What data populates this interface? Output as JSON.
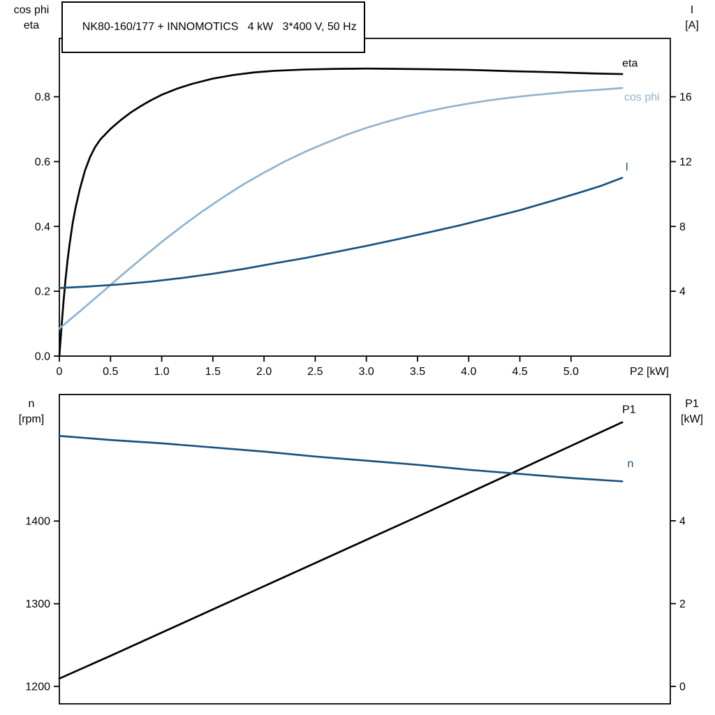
{
  "header": {
    "title": "NK80-160/177 + INNOMOTICS   4 kW   3*400 V, 50 Hz"
  },
  "colors": {
    "curve_black": "#000000",
    "curve_light_blue": "#8fb3d0",
    "curve_dark_blue": "#17527e",
    "axis": "#000000",
    "background": "#ffffff"
  },
  "chart_data": [
    {
      "type": "line",
      "name": "electrical-panel",
      "y_left_corner_label": [
        "cos phi",
        "eta"
      ],
      "y_right_corner_label": [
        "I",
        "[A]"
      ],
      "x_axis": {
        "label": "P2 [kW]",
        "min": 0,
        "max": 5.97,
        "ticks": [
          0,
          0.5,
          1,
          1.5,
          2,
          2.5,
          3,
          3.5,
          4,
          4.5,
          5
        ],
        "tick_labels": [
          "0",
          "0.5",
          "1.0",
          "1.5",
          "2.0",
          "2.5",
          "3.0",
          "3.5",
          "4.0",
          "4.5",
          "5.0"
        ]
      },
      "y_left_axis": {
        "min": 0,
        "max": 0.98,
        "ticks": [
          0,
          0.2,
          0.4,
          0.6,
          0.8
        ],
        "tick_labels": [
          "0.0",
          "0.2",
          "0.4",
          "0.6",
          "0.8"
        ]
      },
      "y_right_axis": {
        "min": 0,
        "max": 19.6,
        "ticks": [
          4,
          8,
          12,
          16
        ],
        "tick_labels": [
          "4",
          "8",
          "12",
          "16"
        ]
      },
      "series": [
        {
          "name": "eta",
          "label": "eta",
          "axis": "left",
          "color": "curve_black",
          "label_at": {
            "x": 5.5,
            "y": 0.905
          },
          "points": [
            [
              0,
              0
            ],
            [
              0.02,
              0.085
            ],
            [
              0.04,
              0.165
            ],
            [
              0.06,
              0.235
            ],
            [
              0.08,
              0.295
            ],
            [
              0.1,
              0.345
            ],
            [
              0.13,
              0.41
            ],
            [
              0.16,
              0.46
            ],
            [
              0.2,
              0.515
            ],
            [
              0.25,
              0.572
            ],
            [
              0.3,
              0.614
            ],
            [
              0.35,
              0.645
            ],
            [
              0.4,
              0.668
            ],
            [
              0.5,
              0.701
            ],
            [
              0.6,
              0.728
            ],
            [
              0.7,
              0.752
            ],
            [
              0.8,
              0.772
            ],
            [
              0.9,
              0.79
            ],
            [
              1,
              0.806
            ],
            [
              1.15,
              0.825
            ],
            [
              1.3,
              0.84
            ],
            [
              1.5,
              0.856
            ],
            [
              1.7,
              0.867
            ],
            [
              1.9,
              0.875
            ],
            [
              2.1,
              0.88
            ],
            [
              2.4,
              0.884
            ],
            [
              2.7,
              0.886
            ],
            [
              3,
              0.887
            ],
            [
              3.3,
              0.886
            ],
            [
              3.6,
              0.885
            ],
            [
              4,
              0.883
            ],
            [
              4.4,
              0.879
            ],
            [
              4.8,
              0.876
            ],
            [
              5.2,
              0.872
            ],
            [
              5.5,
              0.87
            ]
          ]
        },
        {
          "name": "cos-phi",
          "label": "cos phi",
          "axis": "left",
          "color": "curve_light_blue",
          "label_at": {
            "x": 5.52,
            "y": 0.8
          },
          "points": [
            [
              0,
              0.085
            ],
            [
              0.2,
              0.138
            ],
            [
              0.4,
              0.192
            ],
            [
              0.6,
              0.247
            ],
            [
              0.8,
              0.3
            ],
            [
              1,
              0.352
            ],
            [
              1.2,
              0.401
            ],
            [
              1.4,
              0.447
            ],
            [
              1.6,
              0.49
            ],
            [
              1.8,
              0.53
            ],
            [
              2,
              0.566
            ],
            [
              2.2,
              0.6
            ],
            [
              2.4,
              0.63
            ],
            [
              2.6,
              0.657
            ],
            [
              2.8,
              0.682
            ],
            [
              3,
              0.704
            ],
            [
              3.2,
              0.723
            ],
            [
              3.4,
              0.74
            ],
            [
              3.6,
              0.755
            ],
            [
              3.8,
              0.768
            ],
            [
              4,
              0.779
            ],
            [
              4.2,
              0.789
            ],
            [
              4.4,
              0.797
            ],
            [
              4.6,
              0.804
            ],
            [
              4.8,
              0.81
            ],
            [
              5,
              0.816
            ],
            [
              5.25,
              0.821
            ],
            [
              5.5,
              0.827
            ]
          ]
        },
        {
          "name": "current",
          "label": "I",
          "axis": "right",
          "color": "curve_dark_blue",
          "label_at": {
            "x": 5.53,
            "y": 11.7
          },
          "points": [
            [
              0,
              4.2
            ],
            [
              0.3,
              4.3
            ],
            [
              0.6,
              4.43
            ],
            [
              0.9,
              4.6
            ],
            [
              1.2,
              4.82
            ],
            [
              1.5,
              5.08
            ],
            [
              1.8,
              5.38
            ],
            [
              2.1,
              5.72
            ],
            [
              2.4,
              6.05
            ],
            [
              2.7,
              6.42
            ],
            [
              3,
              6.8
            ],
            [
              3.3,
              7.2
            ],
            [
              3.6,
              7.62
            ],
            [
              3.9,
              8.05
            ],
            [
              4.2,
              8.52
            ],
            [
              4.5,
              9
            ],
            [
              4.8,
              9.55
            ],
            [
              5.1,
              10.12
            ],
            [
              5.3,
              10.52
            ],
            [
              5.5,
              11
            ]
          ]
        }
      ]
    },
    {
      "type": "line",
      "name": "mechanical-panel",
      "y_left_corner_label": [
        "n",
        "[rpm]"
      ],
      "y_right_corner_label": [
        "P1",
        "[kW]"
      ],
      "x_axis": {
        "label": "",
        "min": 0,
        "max": 5.97,
        "ticks": [],
        "tick_labels": []
      },
      "y_left_axis": {
        "min": 1179,
        "max": 1553,
        "ticks": [
          1200,
          1300,
          1400
        ],
        "tick_labels": [
          "1200",
          "1300",
          "1400"
        ]
      },
      "y_right_axis": {
        "min": -0.42,
        "max": 7.05,
        "ticks": [
          0,
          2,
          4
        ],
        "tick_labels": [
          "0",
          "2",
          "4"
        ]
      },
      "series": [
        {
          "name": "input-power",
          "label": "P1",
          "axis": "right",
          "color": "curve_black",
          "label_at": {
            "x": 5.5,
            "y": 6.7
          },
          "points": [
            [
              0,
              0.19
            ],
            [
              0.5,
              0.74
            ],
            [
              1,
              1.3
            ],
            [
              1.5,
              1.86
            ],
            [
              2,
              2.42
            ],
            [
              2.5,
              2.98
            ],
            [
              3,
              3.54
            ],
            [
              3.5,
              4.1
            ],
            [
              4,
              4.67
            ],
            [
              4.5,
              5.24
            ],
            [
              5,
              5.81
            ],
            [
              5.5,
              6.38
            ]
          ]
        },
        {
          "name": "speed",
          "label": "n",
          "axis": "left",
          "color": "curve_dark_blue",
          "label_at": {
            "x": 5.55,
            "y": 1470
          },
          "points": [
            [
              0,
              1503
            ],
            [
              0.5,
              1498
            ],
            [
              1,
              1494
            ],
            [
              1.5,
              1489
            ],
            [
              2,
              1484
            ],
            [
              2.5,
              1478
            ],
            [
              3,
              1473
            ],
            [
              3.5,
              1468
            ],
            [
              4,
              1462
            ],
            [
              4.5,
              1457
            ],
            [
              5,
              1452
            ],
            [
              5.5,
              1448
            ]
          ]
        }
      ]
    }
  ]
}
